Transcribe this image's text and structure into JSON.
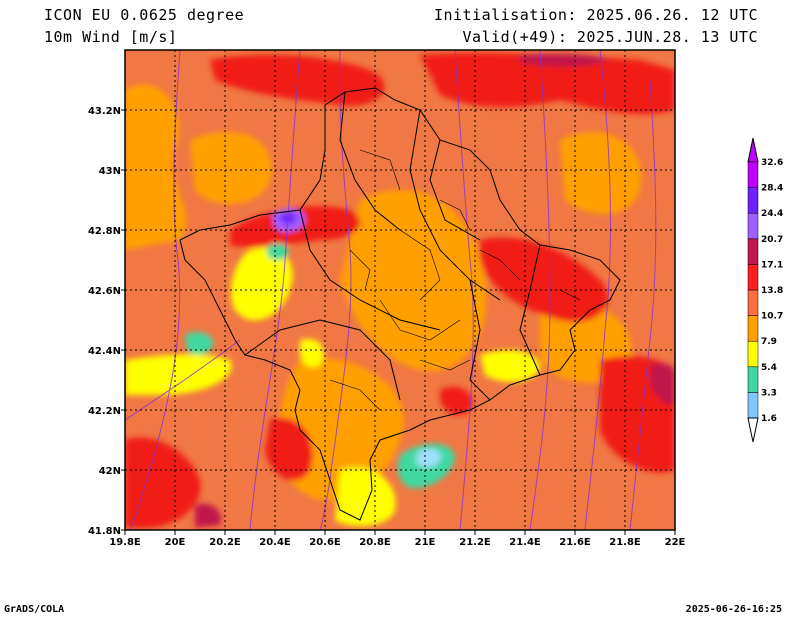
{
  "header": {
    "model": "ICON EU 0.0625 degree",
    "variable": "10m Wind [m/s]",
    "init": "Initialisation: 2025.06.26. 12 UTC",
    "valid": "Valid(+49): 2025.JUN.28. 13 UTC"
  },
  "footer": {
    "left": "GrADS/COLA",
    "right": "2025-06-26-16:25"
  },
  "axes": {
    "lon_labels": [
      "19.8E",
      "20E",
      "20.2E",
      "20.4E",
      "20.6E",
      "20.8E",
      "21E",
      "21.2E",
      "21.4E",
      "21.6E",
      "21.8E",
      "22E"
    ],
    "lat_labels": [
      "43.2N",
      "43N",
      "42.8N",
      "42.6N",
      "42.4N",
      "42.2N",
      "42N",
      "41.8N"
    ]
  },
  "colorbar": {
    "levels": [
      "1.6",
      "3.3",
      "5.4",
      "7.9",
      "10.7",
      "13.8",
      "17.1",
      "20.7",
      "24.4",
      "28.4",
      "32.6"
    ],
    "colors": [
      "#a0ffff",
      "#80c8ff",
      "#40d8a0",
      "#ffff00",
      "#ffa000",
      "#ff6e3c",
      "#ff1e1e",
      "#c0184c",
      "#a060ff",
      "#7020ff",
      "#c000ff"
    ]
  },
  "field_colors": {
    "base": "#f07844",
    "orange": "#ffa000",
    "red": "#f01c18",
    "yellow": "#ffff00",
    "teal": "#40d8a0",
    "lightblue": "#a0e0ff",
    "purple": "#a060ff",
    "darkpurple": "#7020ff",
    "magenta": "#c0184c"
  }
}
